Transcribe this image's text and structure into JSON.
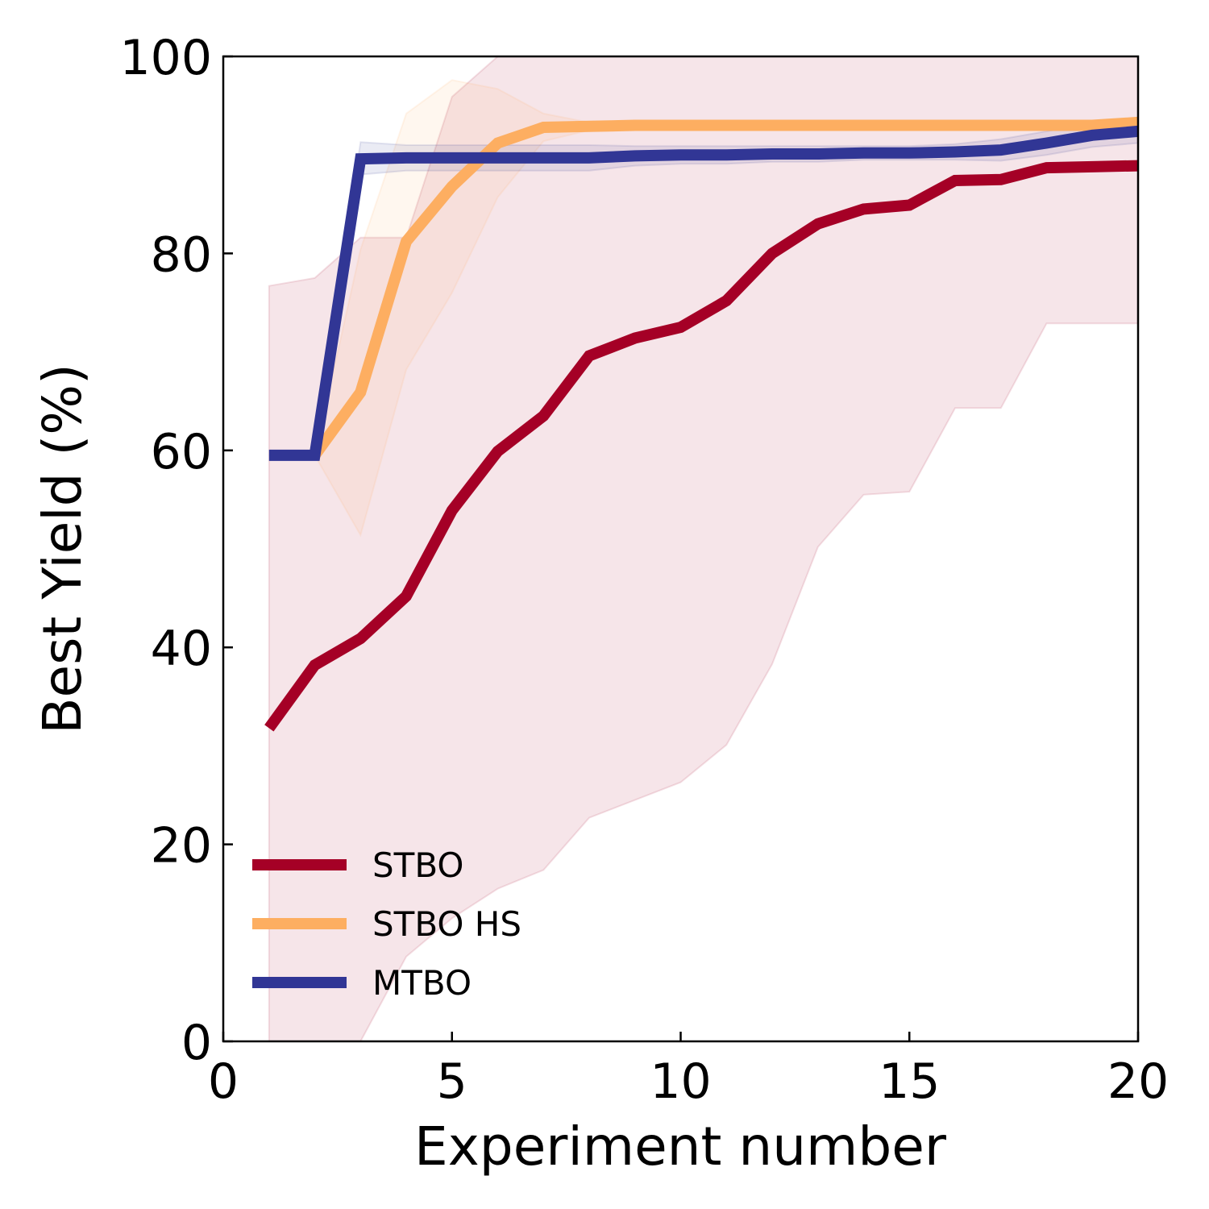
{
  "chart_data": {
    "type": "line",
    "title": "",
    "xlabel": "Experiment number",
    "ylabel": "Best Yield (%)",
    "xlim": [
      0,
      20
    ],
    "ylim": [
      0,
      100
    ],
    "xticks": [
      0,
      5,
      10,
      15,
      20
    ],
    "yticks": [
      0,
      20,
      40,
      60,
      80,
      100
    ],
    "xtick_labels": [
      "0",
      "5",
      "10",
      "15",
      "20"
    ],
    "ytick_labels": [
      "0",
      "20",
      "40",
      "60",
      "80",
      "100"
    ],
    "grid": false,
    "legend_position": "lower-left",
    "series": [
      {
        "name": "STBO",
        "color": "#a50026",
        "x": [
          1,
          2,
          3,
          4,
          5,
          6,
          7,
          8,
          9,
          10,
          11,
          12,
          13,
          14,
          15,
          16,
          17,
          18,
          19,
          20
        ],
        "values": [
          31.8,
          38.2,
          40.9,
          45.2,
          53.9,
          59.9,
          63.5,
          69.6,
          71.4,
          72.5,
          75.2,
          80.0,
          83.0,
          84.5,
          84.9,
          87.4,
          87.5,
          88.7,
          88.8,
          88.9
        ],
        "band_upper": [
          76.7,
          77.5,
          81.6,
          81.6,
          95.9,
          100,
          100,
          100,
          100,
          100,
          100,
          100,
          100,
          100,
          100,
          100,
          100,
          100,
          100,
          100
        ],
        "band_lower": [
          0,
          0,
          0,
          8.6,
          12.5,
          15.5,
          17.4,
          22.7,
          24.5,
          26.3,
          30.1,
          38.3,
          50.2,
          55.5,
          55.8,
          64.3,
          64.3,
          72.9,
          72.9,
          72.9
        ]
      },
      {
        "name": "STBO HS",
        "color": "#fdae61",
        "x": [
          2,
          3,
          4,
          5,
          6,
          7,
          8,
          9,
          10,
          11,
          12,
          13,
          14,
          15,
          16,
          17,
          18,
          19,
          20
        ],
        "values": [
          59.5,
          65.9,
          81.2,
          86.8,
          91.2,
          92.8,
          92.9,
          93.0,
          93.0,
          93.0,
          93.0,
          93.0,
          93.0,
          93.0,
          93.0,
          93.0,
          93.0,
          93.0,
          93.3
        ],
        "band_upper": [
          59.5,
          80.4,
          94.2,
          97.6,
          96.7,
          94.2,
          93.3,
          93.3,
          93.3,
          93.3,
          93.3,
          93.3,
          93.3,
          93.3,
          93.3,
          93.3,
          93.3,
          93.3,
          93.6
        ],
        "band_lower": [
          59.5,
          51.4,
          68.2,
          76.0,
          85.7,
          91.4,
          92.5,
          92.7,
          92.7,
          92.7,
          92.7,
          92.7,
          92.7,
          92.7,
          92.7,
          92.7,
          92.7,
          92.7,
          93.0
        ]
      },
      {
        "name": "MTBO",
        "color": "#313695",
        "x": [
          1,
          2,
          3,
          4,
          5,
          6,
          7,
          8,
          9,
          10,
          11,
          12,
          13,
          14,
          15,
          16,
          17,
          18,
          19,
          20
        ],
        "values": [
          59.5,
          59.5,
          89.6,
          89.7,
          89.7,
          89.7,
          89.7,
          89.7,
          89.9,
          90.0,
          90.0,
          90.1,
          90.1,
          90.2,
          90.2,
          90.3,
          90.5,
          91.2,
          92.0,
          92.4
        ],
        "band_upper": [
          59.5,
          59.5,
          91.3,
          91.0,
          91.0,
          91.0,
          91.0,
          91.0,
          90.9,
          90.9,
          90.9,
          90.9,
          90.9,
          90.9,
          90.9,
          91.1,
          91.6,
          92.4,
          93.2,
          93.6
        ],
        "band_lower": [
          59.5,
          59.5,
          88.0,
          88.4,
          88.4,
          88.4,
          88.4,
          88.4,
          88.9,
          89.1,
          89.1,
          89.3,
          89.3,
          89.5,
          89.5,
          89.5,
          89.4,
          90.0,
          90.8,
          91.2
        ]
      }
    ]
  }
}
